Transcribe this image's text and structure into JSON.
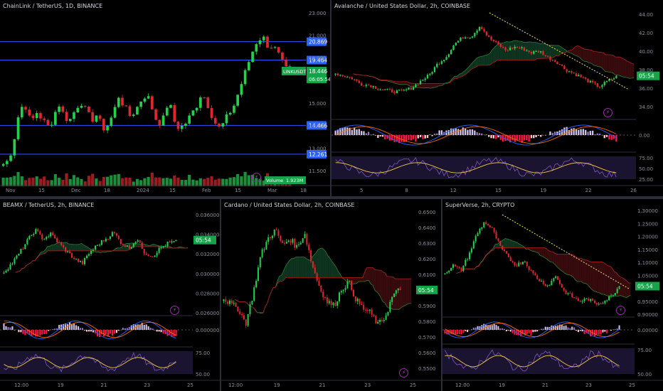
{
  "colors": {
    "up": "#26a69a",
    "bull": "#22d34a",
    "bear": "#e0262f",
    "cloud_bull": "#0f3a22",
    "cloud_bear": "#3d0c10",
    "macd": "#2962ff",
    "signal": "#ff6d00",
    "rsi": "#7e57c2",
    "rsi_ma": "#f6c744",
    "hline": "#3355ff",
    "trend": "#f5e15a"
  },
  "panels": [
    {
      "id": "link",
      "title": "ChainLink / TetherUS, 1D, BINANCE",
      "yticks": [
        "23.000",
        "21.000",
        "19.000",
        "17.000",
        "15.000",
        "14.000",
        "13.000",
        "11.500"
      ],
      "hlines": [
        "20.869",
        "19.464",
        "14.466",
        "12.261"
      ],
      "price_tag": "18.446",
      "ticker_tag": "LINKUSDT",
      "countdown": "06:05:54",
      "volume_label": "Volume",
      "volume_value": "1.923M",
      "xticks": [
        "Nov",
        "15",
        "Dec",
        "18",
        "2024",
        "15",
        "Feb",
        "15",
        "Mar",
        "18"
      ]
    },
    {
      "id": "avax",
      "title": "Avalanche / United States Dollar, 2h, COINBASE",
      "yticks": [
        "44.00",
        "42.00",
        "40.00",
        "38.00",
        "36.00",
        "34.00"
      ],
      "price_tag": "05:54",
      "macd_ticks": [
        "0.00"
      ],
      "rsi_ticks": [
        "75.00",
        "50.00",
        "25.00"
      ],
      "xticks": [
        "5",
        "8",
        "12",
        "15",
        "19",
        "22",
        "26"
      ]
    },
    {
      "id": "beamx",
      "title": "BEAMX / TetherUS, 2h, BINANCE",
      "yticks": [
        "0.036000",
        "0.034000",
        "0.032000",
        "0.030000",
        "0.028000",
        "0.026000"
      ],
      "price_tag": "05:54",
      "macd_ticks": [
        "0.000000"
      ],
      "rsi_ticks": [
        "75.00",
        "50.00"
      ],
      "xticks": [
        "12:00",
        "19",
        "21",
        "23",
        "25"
      ]
    },
    {
      "id": "ada",
      "title": "Cardano / United States Dollar, 2h, COINBASE",
      "yticks": [
        "0.6500",
        "0.6400",
        "0.6300",
        "0.6200",
        "0.6100",
        "0.6000",
        "0.5900",
        "0.5800",
        "0.5700",
        "0.5600",
        "0.5500"
      ],
      "price_tag": "05:54",
      "xticks": [
        "12:00",
        "19",
        "21",
        "23",
        "25"
      ]
    },
    {
      "id": "super",
      "title": "SuperVerse, 2h, CRYPTO",
      "yticks": [
        "1.30000",
        "1.25000",
        "1.20000",
        "1.15000",
        "1.10000",
        "1.05000",
        "1.00000",
        "0.95000",
        "0.90000"
      ],
      "price_tag": "05:54",
      "macd_ticks": [
        "0.00000"
      ],
      "rsi_ticks": [
        "75.00",
        "50.00"
      ],
      "xticks": [
        "12:00",
        "19",
        "21",
        "23",
        "25"
      ]
    }
  ],
  "chart_data": [
    {
      "type": "candlestick",
      "symbol": "LINKUSDT",
      "interval": "1D",
      "exchange": "BINANCE",
      "ylim": [
        11,
        23.3
      ],
      "last": 18.446,
      "horizontal_levels": [
        20.869,
        19.464,
        14.466,
        12.261
      ],
      "x_labels": [
        "Nov",
        "15",
        "Dec",
        "18",
        "2024",
        "15",
        "Feb",
        "15",
        "Mar",
        "18"
      ],
      "close_path": [
        11.5,
        11.8,
        13.5,
        15.8,
        16.0,
        14.6,
        15.5,
        15.0,
        14.3,
        14.9,
        16.2,
        15.2,
        14.8,
        15.6,
        16.4,
        15.5,
        14.9,
        15.3,
        14.2,
        14.5,
        15.4,
        16.8,
        15.8,
        15.2,
        15.6,
        16.4,
        16.9,
        15.8,
        14.6,
        14.9,
        16.4,
        14.8,
        14.2,
        14.6,
        15.2,
        15.9,
        17.0,
        16.2,
        15.1,
        14.2,
        14.6,
        15.4,
        16.1,
        17.4,
        18.6,
        19.9,
        20.9,
        21.3,
        20.6,
        20.5,
        19.8,
        18.9,
        18.4
      ],
      "volume": "bars under price, green up / red down"
    },
    {
      "type": "candlestick",
      "symbol": "AVAX/USD",
      "interval": "2h",
      "exchange": "COINBASE",
      "ylim": [
        33,
        44.5
      ],
      "x_labels": [
        "5",
        "8",
        "12",
        "15",
        "19",
        "22",
        "26"
      ],
      "close_path": [
        37.0,
        36.7,
        36.4,
        35.7,
        35.6,
        35.2,
        35.0,
        34.8,
        34.9,
        35.3,
        36.1,
        36.8,
        38.2,
        39.0,
        40.6,
        41.4,
        41.5,
        42.8,
        41.3,
        40.6,
        39.8,
        40.2,
        40.0,
        39.5,
        39.7,
        38.9,
        38.4,
        37.5,
        37.0,
        36.5,
        35.9,
        35.4,
        36.1,
        36.6
      ],
      "indicators": [
        "ichimoku cloud",
        "descending trendline",
        "MACD",
        "RSI"
      ]
    },
    {
      "type": "candlestick",
      "symbol": "BEAMXUSDT",
      "interval": "2h",
      "exchange": "BINANCE",
      "ylim": [
        0.0245,
        0.0368
      ],
      "x_labels": [
        "12:00",
        "19",
        "21",
        "23",
        "25"
      ],
      "close_path": [
        0.0295,
        0.0305,
        0.0318,
        0.0333,
        0.0346,
        0.0335,
        0.0341,
        0.033,
        0.032,
        0.0311,
        0.0305,
        0.0319,
        0.0328,
        0.0335,
        0.0343,
        0.033,
        0.0324,
        0.0335,
        0.0318,
        0.0314,
        0.0324,
        0.033,
        0.0332
      ],
      "indicators": [
        "ichimoku cloud",
        "MACD",
        "RSI"
      ]
    },
    {
      "type": "candlestick",
      "symbol": "ADA/USD",
      "interval": "2h",
      "exchange": "COINBASE",
      "ylim": [
        0.545,
        0.652
      ],
      "x_labels": [
        "12:00",
        "19",
        "21",
        "23",
        "25"
      ],
      "close_path": [
        0.592,
        0.588,
        0.585,
        0.575,
        0.595,
        0.62,
        0.632,
        0.638,
        0.628,
        0.632,
        0.626,
        0.636,
        0.615,
        0.6,
        0.59,
        0.587,
        0.598,
        0.603,
        0.591,
        0.585,
        0.582,
        0.574,
        0.58,
        0.594,
        0.598
      ],
      "indicators": [
        "ichimoku cloud"
      ]
    },
    {
      "type": "candlestick",
      "symbol": "SUPER",
      "interval": "2h",
      "exchange": "CRYPTO",
      "ylim": [
        0.89,
        1.305
      ],
      "x_labels": [
        "12:00",
        "19",
        "21",
        "23",
        "25"
      ],
      "close_path": [
        1.05,
        1.08,
        1.06,
        1.12,
        1.2,
        1.25,
        1.22,
        1.15,
        1.11,
        1.08,
        1.1,
        1.05,
        1.02,
        1.0,
        1.04,
        0.98,
        0.96,
        0.94,
        0.95,
        0.93,
        0.94,
        0.96,
        1.0
      ],
      "indicators": [
        "ichimoku cloud",
        "descending trendline",
        "MACD",
        "RSI"
      ]
    }
  ]
}
